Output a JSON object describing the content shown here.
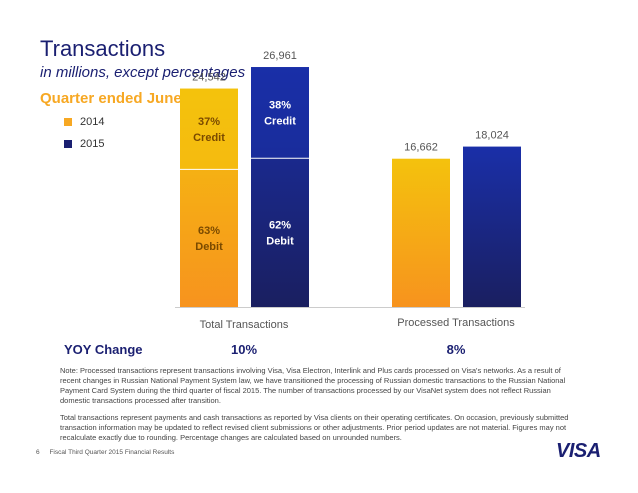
{
  "header": {
    "title": "Transactions",
    "subtitle": "in millions, except percentages",
    "period": "Quarter ended June"
  },
  "legend": [
    {
      "label": "2014",
      "color": "#f7a823"
    },
    {
      "label": "2015",
      "color": "#1a1f71"
    }
  ],
  "chart_data": {
    "type": "bar",
    "categories": [
      "Total Transactions",
      "Processed Transactions"
    ],
    "series": [
      {
        "name": "2014",
        "values": [
          24542,
          16662
        ],
        "labels": [
          "24,542",
          "16,662"
        ]
      },
      {
        "name": "2015",
        "values": [
          26961,
          18024
        ],
        "labels": [
          "26,961",
          "18,024"
        ]
      }
    ],
    "segments": {
      "Total Transactions": {
        "2014": [
          {
            "pct": "63%",
            "label": "Debit",
            "share": 0.63
          },
          {
            "pct": "37%",
            "label": "Credit",
            "share": 0.37
          }
        ],
        "2015": [
          {
            "pct": "62%",
            "label": "Debit",
            "share": 0.62
          },
          {
            "pct": "38%",
            "label": "Credit",
            "share": 0.38
          }
        ]
      }
    },
    "colors": {
      "2014_credit": "#f4c20d",
      "2014_debit": "#f7a823",
      "2015_credit": "#1a2fa0",
      "2015_debit": "#1a1f71"
    },
    "ylim": [
      0,
      30000
    ]
  },
  "yoy": {
    "label": "YOY Change",
    "values": [
      "10%",
      "8%"
    ]
  },
  "notes": [
    "Note: Processed transactions represent transactions involving Visa, Visa Electron, Interlink and Plus cards processed on Visa's networks. As a result of recent changes in Russian National Payment System law, we have transitioned the processing of Russian domestic transactions to the Russian National Payment Card System during the third quarter of fiscal 2015. The number of transactions processed by our VisaNet system does not reflect Russian domestic transactions processed after transition.",
    "Total transactions represent payments and cash transactions as reported by Visa clients on their operating certificates. On occasion, previously submitted transaction information may be updated to reflect revised client submissions or other adjustments. Prior period updates are not material. Figures may not recalculate exactly due to rounding. Percentage changes are calculated based on unrounded numbers."
  ],
  "footer": {
    "page_number": "6",
    "text": "Fiscal Third Quarter 2015 Financial Results"
  },
  "logo": {
    "text": "VISA"
  }
}
